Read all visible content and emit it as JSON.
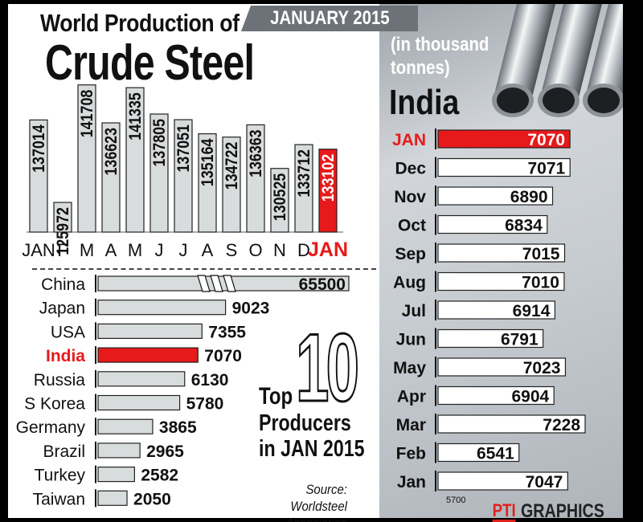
{
  "header": {
    "title_line1": "World Production of",
    "title_line2": "Crude Steel",
    "date_banner": "JANUARY 2015",
    "unit_note_line1": "(in thousand",
    "unit_note_line2": "tonnes)",
    "country_heading": "India"
  },
  "top10_label": {
    "top": "Top",
    "digits": "10",
    "line2": "Producers",
    "line3": "in JAN 2015"
  },
  "source": {
    "line1": "Source:",
    "line2": "Worldsteel Association"
  },
  "credit": {
    "logo": "PTI",
    "text": "GRAPHICS"
  },
  "colors": {
    "highlight": "#e8191b",
    "bar_fill": "#d9dcdc",
    "bar_stroke": "#222222",
    "panel": "#c7ccd1"
  },
  "chart_data": [
    {
      "type": "bar",
      "orientation": "vertical",
      "title": "World Production of Crude Steel",
      "categories": [
        "JAN",
        "F",
        "M",
        "A",
        "M",
        "J",
        "J",
        "A",
        "S",
        "O",
        "N",
        "D",
        "JAN"
      ],
      "values": [
        137014,
        125972,
        141708,
        136623,
        141335,
        137805,
        137051,
        135164,
        134722,
        136363,
        130525,
        133712,
        133102
      ],
      "highlight_index": 12,
      "ylim": [
        122000,
        142000
      ],
      "grid": false,
      "legend": "none"
    },
    {
      "type": "bar",
      "orientation": "horizontal",
      "title": "Top 10 Producers in JAN 2015",
      "categories": [
        "China",
        "Japan",
        "USA",
        "India",
        "Russia",
        "S Korea",
        "Germany",
        "Brazil",
        "Turkey",
        "Taiwan"
      ],
      "values": [
        65500,
        9023,
        7355,
        7070,
        6130,
        5780,
        3865,
        2965,
        2582,
        2050
      ],
      "highlight_category": "India",
      "axis_break_on": "China",
      "grid": false,
      "legend": "none"
    },
    {
      "type": "bar",
      "orientation": "horizontal",
      "title": "India",
      "categories": [
        "JAN",
        "Dec",
        "Nov",
        "Oct",
        "Sep",
        "Aug",
        "Jul",
        "Jun",
        "May",
        "Apr",
        "Mar",
        "Feb",
        "Jan"
      ],
      "values": [
        7070,
        7071,
        6890,
        6834,
        7015,
        7010,
        6914,
        6791,
        7023,
        6904,
        7228,
        6541,
        7047
      ],
      "highlight_index": 0,
      "axis_min_label": "5700",
      "xlim": [
        5700,
        7300
      ],
      "grid": false,
      "legend": "none"
    }
  ]
}
